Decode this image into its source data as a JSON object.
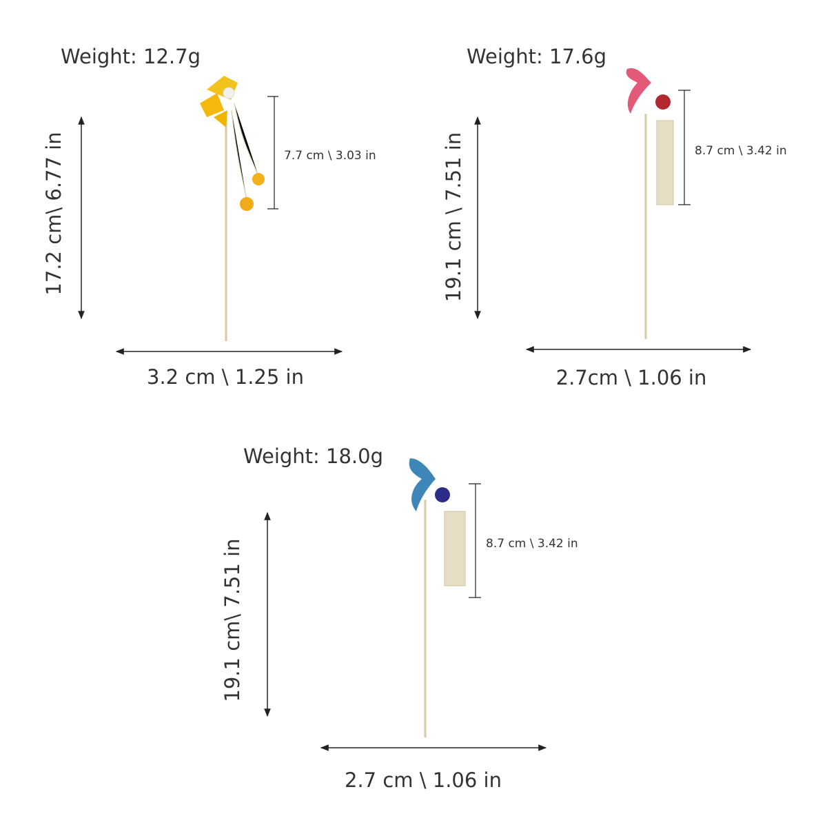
{
  "items": [
    {
      "weight": "Weight: 12.7g",
      "height": "17.2 cm\\ 6.77  in",
      "width": "3.2 cm \\ 1.25 in",
      "tassel": "7.7 cm \\ 3.03  in"
    },
    {
      "weight": "Weight: 17.6g",
      "height": "19.1 cm \\ 7.51  in",
      "width": "2.7cm \\ 1.06 in",
      "tassel": "8.7 cm \\ 3.42  in"
    },
    {
      "weight": "Weight: 18.0g",
      "height": "19.1 cm\\ 7.51  in",
      "width": "2.7 cm \\ 1.06 in",
      "tassel": "8.7 cm \\ 3.42  in"
    }
  ]
}
